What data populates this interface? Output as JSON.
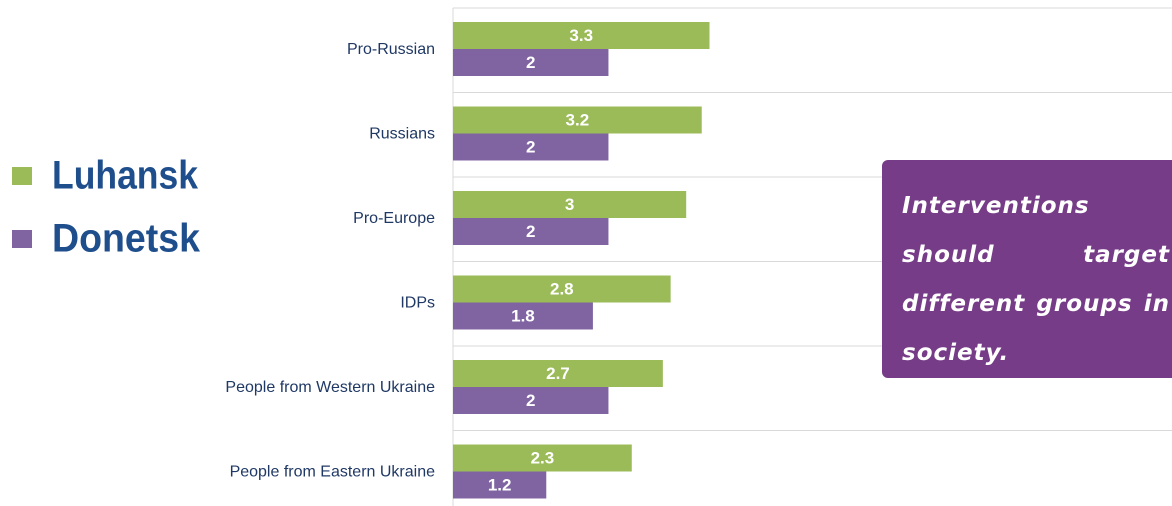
{
  "chart_data": {
    "type": "bar",
    "orientation": "horizontal",
    "categories": [
      "Pro-Russian",
      "Russians",
      "Pro-Europe",
      "IDPs",
      "People from Western Ukraine",
      "People from Eastern Ukraine"
    ],
    "series": [
      {
        "name": "Luhansk",
        "color": "#9bbb59",
        "values": [
          3.3,
          3.2,
          3,
          2.8,
          2.7,
          2.3
        ]
      },
      {
        "name": "Donetsk",
        "color": "#8064a2",
        "values": [
          2,
          2,
          2,
          1.8,
          2,
          1.2
        ]
      }
    ],
    "xlim": [
      0,
      9.25
    ],
    "legend": "left",
    "annotation": "Interventions should target different groups in society."
  }
}
